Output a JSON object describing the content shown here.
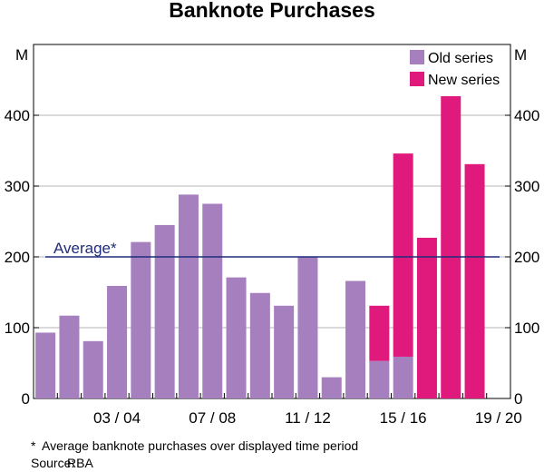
{
  "chart_data": {
    "type": "bar",
    "title": "Banknote Purchases",
    "y_unit_left": "M",
    "y_unit_right": "M",
    "ylim": [
      0,
      500
    ],
    "yticks": [
      0,
      100,
      200,
      300,
      400
    ],
    "grid": true,
    "legend_position": "top-right",
    "stacked": true,
    "categories": [
      "2000/01",
      "2001/02",
      "2002/03",
      "2003/04",
      "2004/05",
      "2005/06",
      "2006/07",
      "2007/08",
      "2008/09",
      "2009/10",
      "2010/11",
      "2011/12",
      "2012/13",
      "2013/14",
      "2014/15",
      "2015/16",
      "2016/17",
      "2017/18",
      "2018/19",
      "2019/20"
    ],
    "x_tick_labels": [
      {
        "index": 3,
        "label": "03 / 04"
      },
      {
        "index": 7,
        "label": "07 / 08"
      },
      {
        "index": 11,
        "label": "11 / 12"
      },
      {
        "index": 15,
        "label": "15 / 16"
      },
      {
        "index": 19,
        "label": "19 / 20"
      }
    ],
    "series": [
      {
        "name": "Old series",
        "color": "#a67fbf",
        "values": [
          93,
          117,
          81,
          159,
          221,
          245,
          288,
          275,
          171,
          149,
          131,
          200,
          30,
          166,
          53,
          59,
          0,
          0,
          0,
          0
        ]
      },
      {
        "name": "New series",
        "color": "#e0197d",
        "values": [
          0,
          0,
          0,
          0,
          0,
          0,
          0,
          0,
          0,
          0,
          0,
          0,
          0,
          0,
          78,
          287,
          227,
          427,
          331,
          0
        ]
      }
    ],
    "reference_line": {
      "label": "Average*",
      "value": 200,
      "color": "#1f2d7a"
    }
  },
  "footnotes": {
    "mark": "*",
    "text": "Average banknote purchases over displayed time period",
    "source_label": "Source:",
    "source_value": "RBA"
  }
}
